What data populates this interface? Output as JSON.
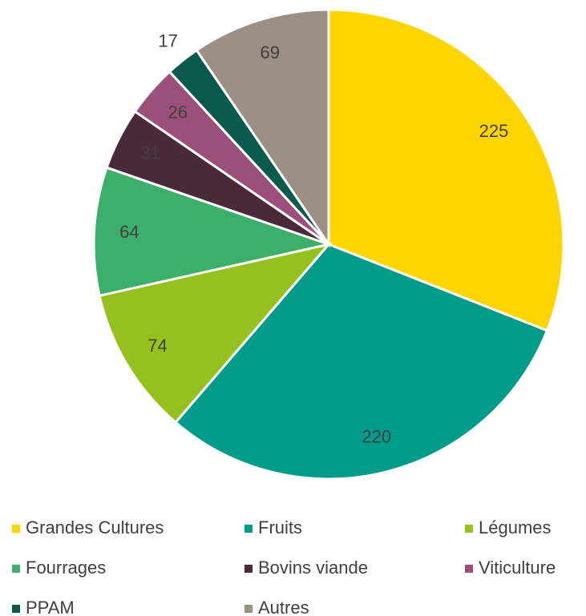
{
  "chart_data": {
    "type": "pie",
    "categories": [
      "Grandes Cultures",
      "Fruits",
      "Légumes",
      "Fourrages",
      "Bovins viande",
      "Viticulture",
      "PPAM",
      "Autres"
    ],
    "values": [
      225,
      220,
      74,
      64,
      31,
      26,
      17,
      69
    ],
    "colors": [
      "#ffd500",
      "#009c8a",
      "#95c11f",
      "#3caf6a",
      "#4a2a3a",
      "#9c4f7a",
      "#0b5a4e",
      "#9c8f85"
    ],
    "legend": "bottom"
  }
}
